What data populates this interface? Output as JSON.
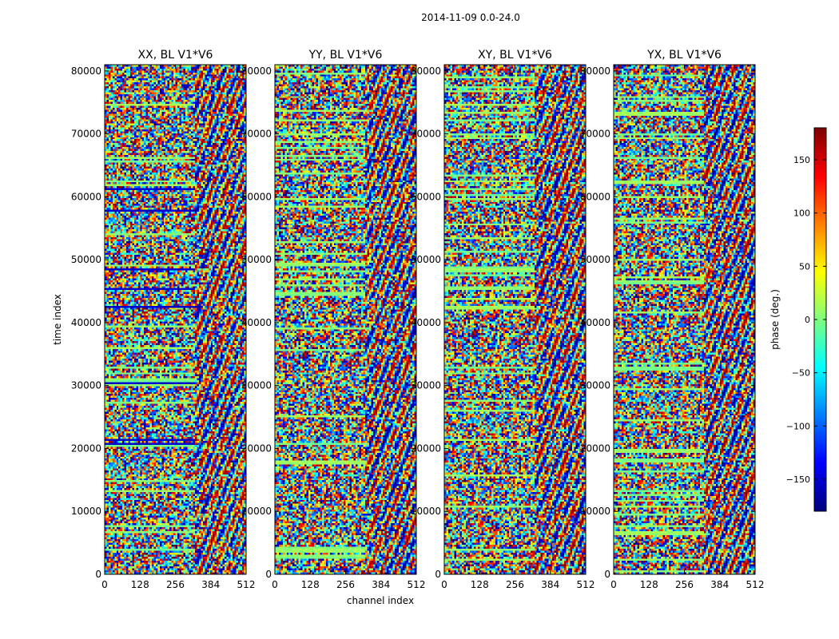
{
  "chart_data": {
    "type": "heatmap",
    "suptitle": "2014-11-09 0.0-24.0",
    "xlabel": "channel index",
    "ylabel": "time index",
    "xlim": [
      0,
      512
    ],
    "ylim": [
      0,
      81000
    ],
    "xticks": [
      0,
      128,
      256,
      384,
      512
    ],
    "yticks": [
      0,
      10000,
      20000,
      30000,
      40000,
      50000,
      60000,
      70000,
      80000
    ],
    "panels": [
      {
        "title": "XX, BL V1*V6"
      },
      {
        "title": "YY, BL V1*V6"
      },
      {
        "title": "XY, BL V1*V6"
      },
      {
        "title": "YX, BL V1*V6"
      }
    ],
    "colorbar": {
      "label": "phase (deg.)",
      "range": [
        -180,
        180
      ],
      "ticks": [
        -150,
        -100,
        -50,
        0,
        50,
        100,
        150
      ],
      "ticklabels": [
        "−150",
        "−100",
        "−50",
        "0",
        "50",
        "100",
        "150"
      ],
      "colormap": "jet"
    },
    "colors": {
      "axis": "#000000",
      "background": "#ffffff"
    }
  }
}
